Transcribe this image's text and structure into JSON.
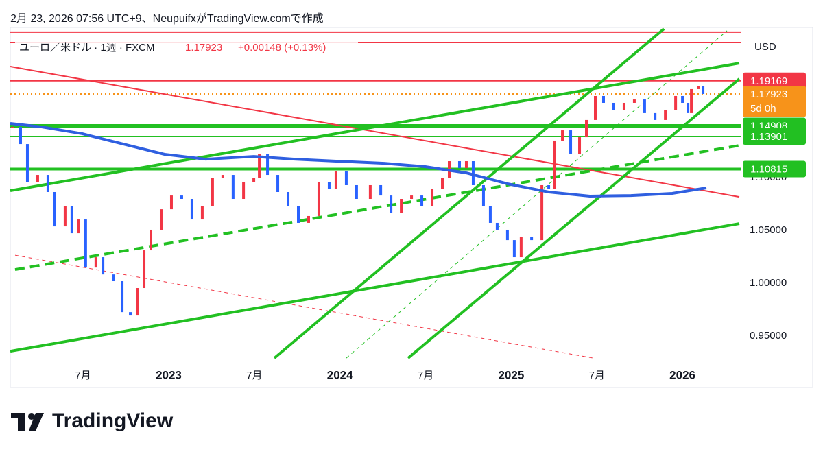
{
  "header": {
    "caption": "2月 23, 2026 07:56 UTC+9、NeupuifxがTradingView.comで作成",
    "symbol": "ユーロ／米ドル · 1週 · FXCM",
    "price": "1.17923",
    "change": "+0.00148 (+0.13%)"
  },
  "chart_data": {
    "type": "candlestick",
    "x": [
      2022.087,
      2022.135,
      2022.175,
      2022.235,
      2022.295,
      2022.335,
      2022.395,
      2022.435,
      2022.475,
      2022.515,
      2022.575,
      2022.616,
      2022.676,
      2022.728,
      2022.776,
      2022.816,
      2022.856,
      2022.896,
      2022.956,
      2023.016,
      2023.076,
      2023.136,
      2023.196,
      2023.256,
      2023.316,
      2023.376,
      2023.437,
      2023.497,
      2023.529,
      2023.577,
      2023.637,
      2023.697,
      2023.757,
      2023.817,
      2023.877,
      2023.937,
      2023.977,
      2024.037,
      2024.097,
      2024.177,
      2024.238,
      2024.298,
      2024.358,
      2024.418,
      2024.478,
      2024.538,
      2024.598,
      2024.638,
      2024.698,
      2024.738,
      2024.778,
      2024.838,
      2024.878,
      2024.918,
      2024.978,
      2025.018,
      2025.058,
      2025.119,
      2025.179,
      2025.219,
      2025.251,
      2025.299,
      2025.347,
      2025.399,
      2025.439,
      2025.491,
      2025.539,
      2025.599,
      2025.659,
      2025.719,
      2025.779,
      2025.84,
      2025.9,
      2025.96,
      2026.0,
      2026.032,
      2026.052,
      2026.092,
      2026.12
    ],
    "values": [
      1.1481,
      1.1318,
      1.0961,
      1.1026,
      1.0864,
      1.0539,
      1.0734,
      1.0474,
      1.0604,
      1.0149,
      1.0247,
      1.0084,
      1.002,
      0.9727,
      0.9695,
      0.9955,
      1.0312,
      1.0507,
      1.0701,
      1.0831,
      1.0799,
      1.0604,
      1.0734,
      1.0994,
      1.1026,
      1.0799,
      1.0961,
      1.0994,
      1.1221,
      1.1026,
      1.0864,
      1.0734,
      1.0572,
      1.0637,
      1.0961,
      1.0896,
      1.1059,
      1.0929,
      1.0799,
      1.0929,
      1.0831,
      1.0669,
      1.0799,
      1.0831,
      1.0734,
      1.0896,
      1.0994,
      1.1156,
      1.1091,
      1.1156,
      1.0929,
      1.0734,
      1.0572,
      1.0507,
      1.0409,
      1.0247,
      1.0442,
      1.0409,
      1.0929,
      1.0896,
      1.1351,
      1.1448,
      1.1221,
      1.1383,
      1.1546,
      1.1773,
      1.1708,
      1.1643,
      1.1708,
      1.174,
      1.1611,
      1.1546,
      1.1643,
      1.1773,
      1.1708,
      1.1611,
      1.1838,
      1.187,
      1.1792
    ],
    "up_color": "#f23645",
    "down_color": "#2962ff",
    "xlim": [
      2022.075,
      2026.34
    ],
    "xticks": [
      {
        "value": 2022.5,
        "label": "7月"
      },
      2023,
      {
        "value": 2023.5,
        "label": "7月"
      },
      2024,
      {
        "value": 2024.5,
        "label": "7月"
      },
      2025,
      {
        "value": 2025.5,
        "label": "7月"
      },
      2026
    ],
    "ylim": [
      0.9241,
      1.2422
    ],
    "yticks": [
      {
        "value": 0.95,
        "label": "0.95000"
      },
      {
        "value": 1.0,
        "label": "1.00000"
      },
      {
        "value": 1.05,
        "label": "1.05000"
      },
      {
        "value": 1.1,
        "label": "1.10000"
      }
    ],
    "y_unit": "USD",
    "moving_average": {
      "color": "#2f5fe0",
      "x": [
        2022.075,
        2022.255,
        2022.495,
        2022.736,
        2022.976,
        2023.216,
        2023.497,
        2023.737,
        2023.977,
        2024.258,
        2024.498,
        2024.738,
        2024.978,
        2025.219,
        2025.459,
        2025.699,
        2025.94,
        2026.14
      ],
      "values": [
        1.1513,
        1.1481,
        1.1416,
        1.1318,
        1.1221,
        1.1175,
        1.1201,
        1.1175,
        1.1156,
        1.1136,
        1.1104,
        1.1045,
        1.0942,
        1.0864,
        1.0825,
        1.0831,
        1.0851,
        1.0903
      ]
    },
    "levels": [
      {
        "value": 1.2377,
        "color": "#f23645",
        "width": 2,
        "show_label": false
      },
      {
        "value": 1.2279,
        "color": "#f23645",
        "width": 2,
        "show_label": false
      },
      {
        "value": 1.19169,
        "color": "#f23645",
        "width": 2,
        "show_label": true
      },
      {
        "value": 1.14908,
        "color": "#22c022",
        "width": 5,
        "show_label": true
      },
      {
        "value": 1.13901,
        "color": "#22c022",
        "width": 2,
        "show_label": true
      },
      {
        "value": 1.10815,
        "color": "#22c022",
        "width": 4,
        "show_label": true
      }
    ],
    "last_price": {
      "value": 1.17923,
      "countdown": "5d 0h",
      "color": "#f7931a"
    },
    "lines": [
      {
        "x": [
          2022.075,
          2026.332
        ],
        "y": [
          1.2052,
          1.0818
        ],
        "color": "#f23645",
        "width": 2,
        "dash": false
      },
      {
        "x": [
          2022.103,
          2025.479
        ],
        "y": [
          1.0266,
          0.9292
        ],
        "color": "#f23645",
        "width": 1,
        "dash": true
      },
      {
        "x": [
          2022.075,
          2026.332
        ],
        "y": [
          0.9357,
          1.0565
        ],
        "color": "#22c022",
        "width": 4,
        "dash": false
      },
      {
        "x": [
          2022.075,
          2026.332
        ],
        "y": [
          1.0877,
          1.2084
        ],
        "color": "#22c022",
        "width": 4,
        "dash": false
      },
      {
        "x": [
          2022.103,
          2026.332
        ],
        "y": [
          1.013,
          1.1305
        ],
        "color": "#22c022",
        "width": 4,
        "dash": true
      },
      {
        "x": [
          2023.617,
          2025.892
        ],
        "y": [
          0.9292,
          1.2409
        ],
        "color": "#22c022",
        "width": 4,
        "dash": false
      },
      {
        "x": [
          2024.398,
          2026.332
        ],
        "y": [
          0.9292,
          1.1935
        ],
        "color": "#22c022",
        "width": 4,
        "dash": false
      },
      {
        "x": [
          2024.037,
          2026.26
        ],
        "y": [
          0.9292,
          1.239
        ],
        "color": "#22c022",
        "width": 1,
        "dash": true
      }
    ]
  },
  "footer": {
    "logo": "TradingView"
  }
}
